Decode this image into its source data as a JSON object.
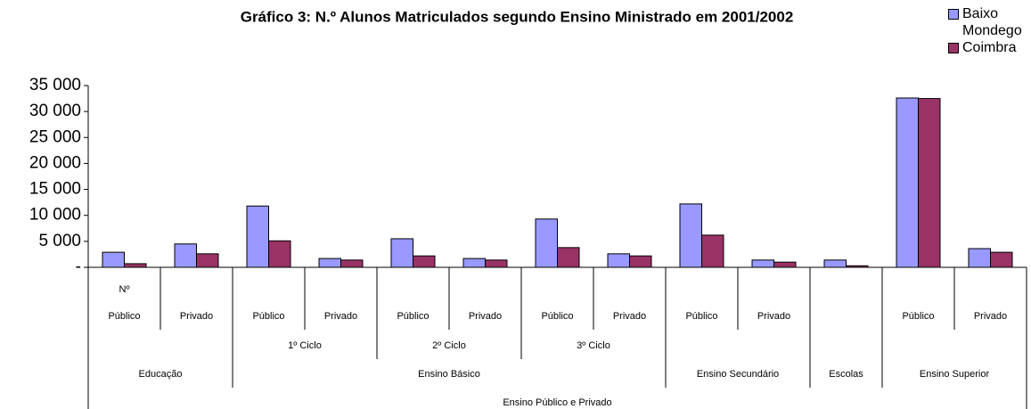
{
  "chart_data": {
    "type": "bar",
    "title": "Gráfico 3: N.º Alunos Matriculados segundo Ensino Ministrado em 2001/2002",
    "categories": [
      "Público",
      "Privado",
      "Público",
      "Privado",
      "Público",
      "Privado",
      "Público",
      "Privado",
      "Público",
      "Privado",
      null,
      "Público",
      "Privado"
    ],
    "category_groups": [
      [
        {
          "label": "Nº",
          "first": 0,
          "last": 0
        }
      ],
      [
        {
          "label": "1º Ciclo",
          "first": 2,
          "last": 3
        },
        {
          "label": "2º Ciclo",
          "first": 4,
          "last": 5
        },
        {
          "label": "3º Ciclo",
          "first": 6,
          "last": 7
        }
      ],
      [
        {
          "label": "Educação",
          "first": 0,
          "last": 1
        },
        {
          "label": "Ensino Básico",
          "first": 2,
          "last": 7
        },
        {
          "label": "Ensino Secundário",
          "first": 8,
          "last": 9
        },
        {
          "label": "Escolas",
          "first": 10,
          "last": 10
        },
        {
          "label": "Ensino Superior",
          "first": 11,
          "last": 12
        }
      ],
      [
        {
          "label": "Ensino Público e Privado",
          "first": 0,
          "last": 12
        }
      ]
    ],
    "series": [
      {
        "name": "Baixo Mondego",
        "color": "#9999ff",
        "values": [
          2900,
          4500,
          11800,
          1700,
          5500,
          1700,
          9300,
          2600,
          12200,
          1400,
          1400,
          32600,
          3600
        ]
      },
      {
        "name": "Coimbra",
        "color": "#993366",
        "values": [
          700,
          2600,
          5100,
          1400,
          2200,
          1400,
          3800,
          2200,
          6200,
          1000,
          300,
          32500,
          2900
        ]
      }
    ],
    "ylim": [
      0,
      35000
    ],
    "yticks": [
      {
        "value": 0,
        "label": "-"
      },
      {
        "value": 5000,
        "label": "5 000"
      },
      {
        "value": 10000,
        "label": "10 000"
      },
      {
        "value": 15000,
        "label": "15 000"
      },
      {
        "value": 20000,
        "label": "20 000"
      },
      {
        "value": 25000,
        "label": "25 000"
      },
      {
        "value": 30000,
        "label": "30 000"
      },
      {
        "value": 35000,
        "label": "35 000"
      }
    ],
    "legend": "top-right",
    "grid": false
  }
}
